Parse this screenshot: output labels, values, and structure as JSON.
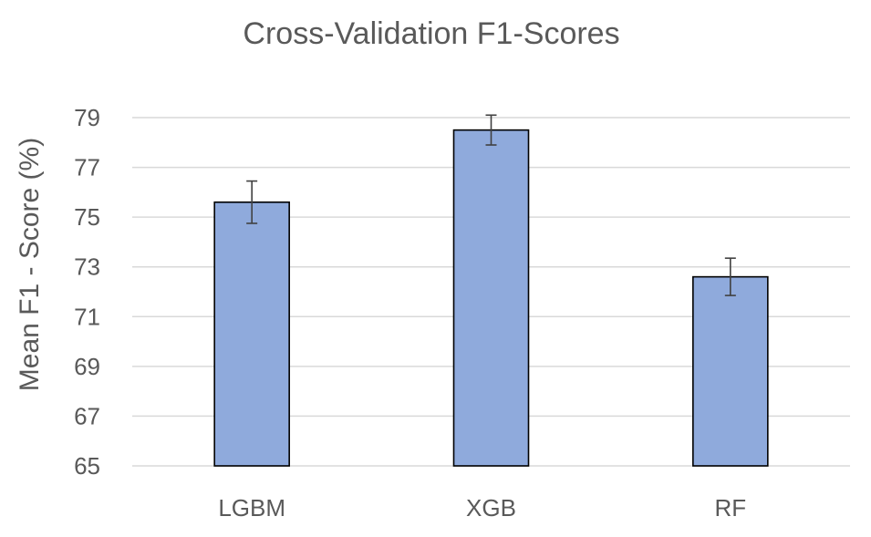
{
  "chart_data": {
    "type": "bar",
    "title": "Cross-Validation F1-Scores",
    "xlabel": "",
    "ylabel": "Mean F1 - Score (%)",
    "categories": [
      "LGBM",
      "XGB",
      "RF"
    ],
    "values": [
      75.6,
      78.5,
      72.6
    ],
    "error": [
      0.85,
      0.6,
      0.75
    ],
    "ylim": [
      65,
      79
    ],
    "yticks": [
      "65",
      "67",
      "69",
      "71",
      "73",
      "75",
      "77",
      "79"
    ],
    "grid": true,
    "legend": "none",
    "bar_color": "#8faadc",
    "bar_edge_color": "#000000"
  }
}
